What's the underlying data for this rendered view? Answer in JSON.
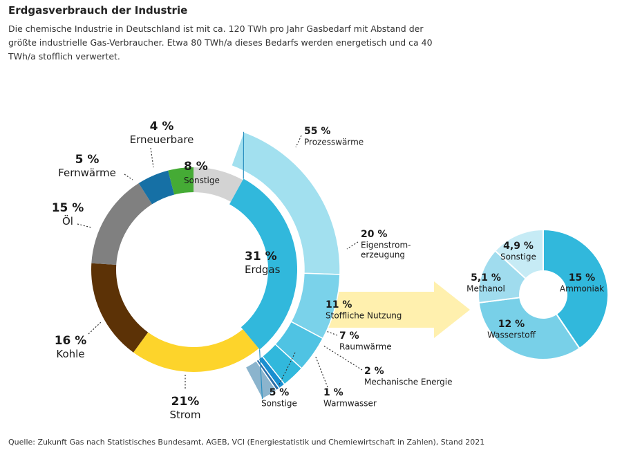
{
  "title": "Erdgasverbrauch der Industrie",
  "subtitle": "Die chemische Industrie in Deutschland ist mit ca. 120 TWh pro Jahr Gasbedarf mit Abstand der größte industrielle Gas-Verbraucher. Etwa 80 TWh/a dieses Bedarfs werden energetisch und ca 40 TWh/a stofflich verwertet.",
  "source": "Quelle: Zukunft Gas nach Statistisches Bundesamt, AGEB, VCI (Energiestatistik und Chemiewirtschaft in Zahlen), Stand 2021",
  "chart_data": [
    {
      "type": "pie",
      "variant": "donut",
      "slices": [
        {
          "label": "Sonstige",
          "pct_label": "8 %",
          "value": 8,
          "color": "#d3d3d3"
        },
        {
          "label": "Erdgas",
          "pct_label": "31 %",
          "value": 31,
          "color": "#31b8dc"
        },
        {
          "label": "Strom",
          "pct_label": "21%",
          "value": 21,
          "color": "#fdd42b"
        },
        {
          "label": "Kohle",
          "pct_label": "16 %",
          "value": 16,
          "color": "#5c3206"
        },
        {
          "label": "Öl",
          "pct_label": "15 %",
          "value": 15,
          "color": "#808080"
        },
        {
          "label": "Fernwärme",
          "pct_label": "5 %",
          "value": 5,
          "color": "#1670a5"
        },
        {
          "label": "Erneuerbare",
          "pct_label": "4 %",
          "value": 4,
          "color": "#45ab35"
        }
      ]
    },
    {
      "type": "pie",
      "variant": "partial-ring",
      "parent": "Erdgas",
      "slices": [
        {
          "label": "Prozesswärme",
          "pct_label": "55 %",
          "value": 55,
          "color": "#a2e0ef"
        },
        {
          "label": "Eigenstrom-\nerzeugung",
          "pct_label": "20 %",
          "value": 20,
          "color": "#7ad2ea"
        },
        {
          "label": "Stoffliche Nutzung",
          "pct_label": "11 %",
          "value": 11,
          "color": "#4fc3e3"
        },
        {
          "label": "Raumwärme",
          "pct_label": "7 %",
          "value": 7,
          "color": "#31b8dc"
        },
        {
          "label": "Mechanische Energie",
          "pct_label": "2 %",
          "value": 2,
          "color": "#1a8fd0"
        },
        {
          "label": "Warmwasser",
          "pct_label": "1 %",
          "value": 1,
          "color": "#2a6fa8"
        },
        {
          "label": "Sonstige",
          "pct_label": "5 %",
          "value": 5,
          "color": "#8bb4cd"
        }
      ]
    },
    {
      "type": "pie",
      "variant": "donut",
      "parent": "Stoffliche Nutzung",
      "slices": [
        {
          "label": "Ammoniak",
          "pct_label": "15 %",
          "value": 15,
          "color": "#31b8dc"
        },
        {
          "label": "Wasserstoff",
          "pct_label": "12 %",
          "value": 12,
          "color": "#78d0e8"
        },
        {
          "label": "Methanol",
          "pct_label": "5,1 %",
          "value": 5.1,
          "color": "#a0dcee"
        },
        {
          "label": "Sonstige",
          "pct_label": "4,9 %",
          "value": 4.9,
          "color": "#c6ebf5"
        }
      ]
    }
  ]
}
